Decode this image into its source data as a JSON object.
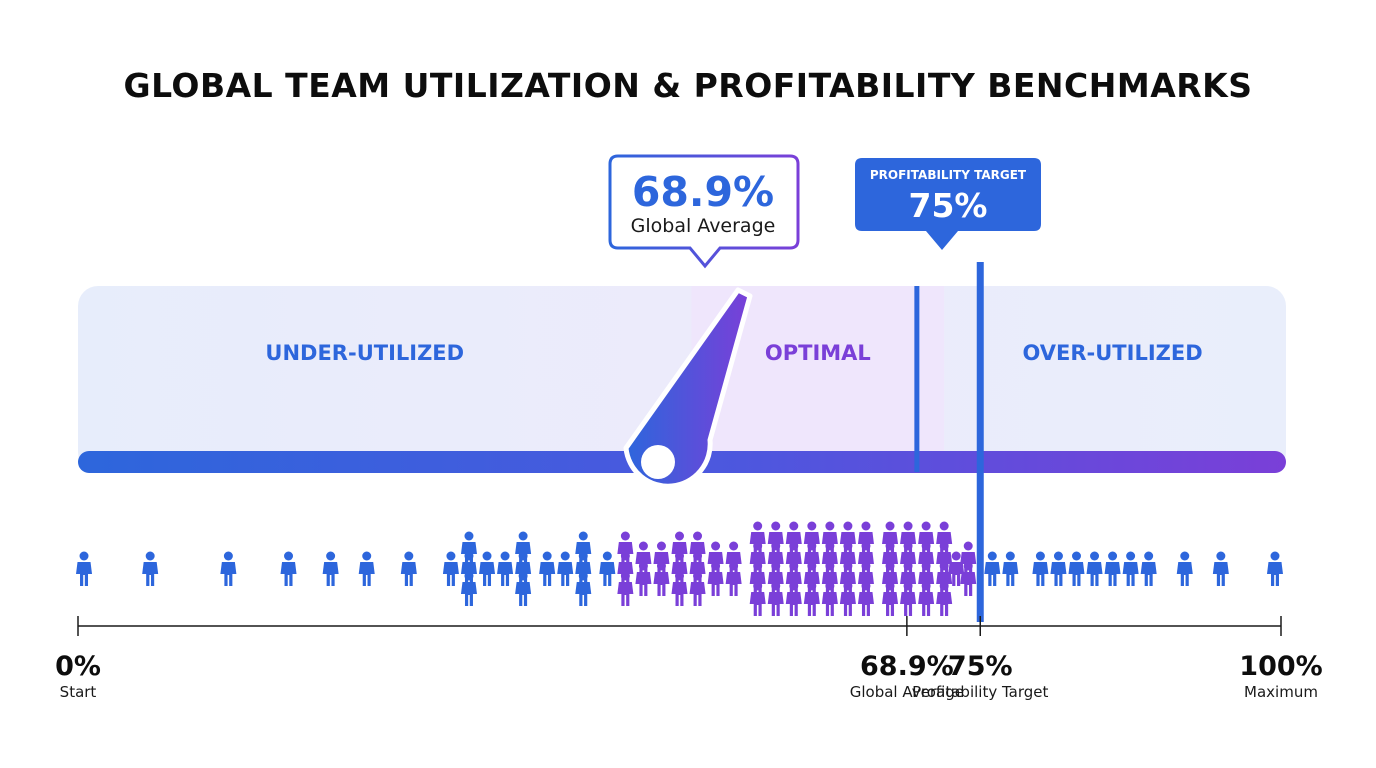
{
  "colors": {
    "blue": "#2d66dc",
    "purple": "#7a3fd8",
    "band": "#e9eefb",
    "optimal_band": "#efe8fc",
    "text": "#0d0d0d"
  },
  "chart_data": {
    "type": "gauge",
    "title": "GLOBAL TEAM UTILIZATION & PROFITABILITY BENCHMARKS",
    "xlim": [
      0,
      100
    ],
    "zones": [
      {
        "label": "UNDER-UTILIZED",
        "from": 0,
        "to": 51
      },
      {
        "label": "OPTIMAL",
        "from": 51,
        "to": 72
      },
      {
        "label": "OVER-UTILIZED",
        "from": 72,
        "to": 100
      }
    ],
    "average": {
      "value": 68.9,
      "value_label": "68.9%",
      "label": "Global Average"
    },
    "target": {
      "value": 75,
      "value_label": "75%",
      "label": "PROFITABILITY TARGET"
    },
    "axis_ticks": [
      {
        "value": 0,
        "label": "0%",
        "sublabel": "Start"
      },
      {
        "value": 68.9,
        "label": "68.9%",
        "sublabel": "Global Average"
      },
      {
        "value": 75,
        "label": "75%",
        "sublabel": "Profitability Target"
      },
      {
        "value": 100,
        "label": "100%",
        "sublabel": "Maximum"
      }
    ],
    "distribution": [
      {
        "x": 0.5,
        "count": 1
      },
      {
        "x": 6,
        "count": 1
      },
      {
        "x": 12.5,
        "count": 1
      },
      {
        "x": 17.5,
        "count": 1
      },
      {
        "x": 21,
        "count": 1
      },
      {
        "x": 24,
        "count": 1
      },
      {
        "x": 27.5,
        "count": 1
      },
      {
        "x": 31,
        "count": 1
      },
      {
        "x": 32.5,
        "count": 3
      },
      {
        "x": 34,
        "count": 1
      },
      {
        "x": 35.5,
        "count": 1
      },
      {
        "x": 37,
        "count": 3
      },
      {
        "x": 39,
        "count": 1
      },
      {
        "x": 40.5,
        "count": 1
      },
      {
        "x": 42,
        "count": 3
      },
      {
        "x": 44,
        "count": 1
      },
      {
        "x": 45.5,
        "count": 3
      },
      {
        "x": 47,
        "count": 2
      },
      {
        "x": 48.5,
        "count": 2
      },
      {
        "x": 50,
        "count": 3
      },
      {
        "x": 51.5,
        "count": 3
      },
      {
        "x": 53,
        "count": 2
      },
      {
        "x": 54.5,
        "count": 2
      },
      {
        "x": 56.5,
        "count": 4
      },
      {
        "x": 58,
        "count": 4
      },
      {
        "x": 59.5,
        "count": 4
      },
      {
        "x": 61,
        "count": 4
      },
      {
        "x": 62.5,
        "count": 4
      },
      {
        "x": 64,
        "count": 4
      },
      {
        "x": 65.5,
        "count": 4
      },
      {
        "x": 67.5,
        "count": 4
      },
      {
        "x": 69,
        "count": 4
      },
      {
        "x": 70.5,
        "count": 4
      },
      {
        "x": 72,
        "count": 4
      },
      {
        "x": 74,
        "count": 2
      },
      {
        "x": 73,
        "count": 1
      },
      {
        "x": 76,
        "count": 1
      },
      {
        "x": 77.5,
        "count": 1
      },
      {
        "x": 80,
        "count": 1
      },
      {
        "x": 81.5,
        "count": 1
      },
      {
        "x": 83,
        "count": 1
      },
      {
        "x": 84.5,
        "count": 1
      },
      {
        "x": 86,
        "count": 1
      },
      {
        "x": 87.5,
        "count": 1
      },
      {
        "x": 89,
        "count": 1
      },
      {
        "x": 92,
        "count": 1
      },
      {
        "x": 95,
        "count": 1
      },
      {
        "x": 99.5,
        "count": 1
      }
    ]
  }
}
